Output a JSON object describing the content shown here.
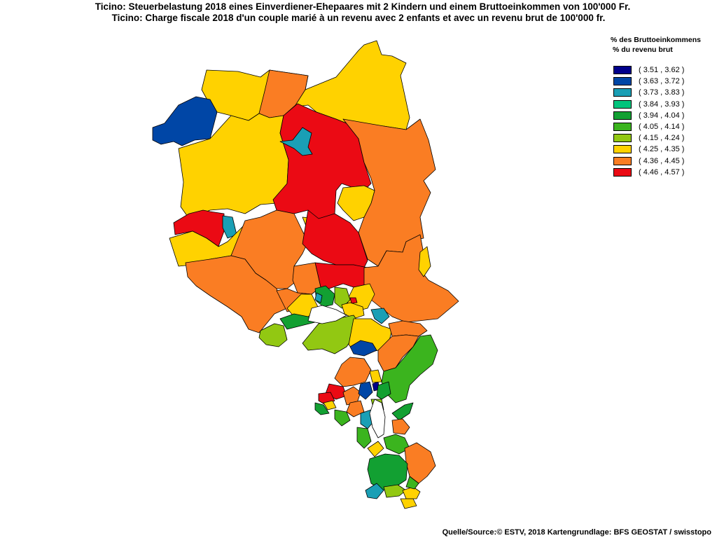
{
  "title": {
    "line1": "Ticino: Steuerbelastung 2018 eines Einverdiener-Ehepaares mit 2 Kindern und einem Bruttoeinkommen von 100'000 Fr.",
    "line2": "Ticino: Charge fiscale 2018 d'un couple marié à un revenu avec 2 enfants et avec un revenu brut de 100'000 fr."
  },
  "legend": {
    "title_de": "% des Bruttoeinkommens",
    "title_fr": "% du revenu brut",
    "classes": [
      {
        "label": "( 3.51 , 3.62 )",
        "color": "#00008b"
      },
      {
        "label": "( 3.63 , 3.72 )",
        "color": "#0046a6"
      },
      {
        "label": "( 3.73 , 3.83 )",
        "color": "#1a9fb5"
      },
      {
        "label": "( 3.84 , 3.93 )",
        "color": "#00c47c"
      },
      {
        "label": "( 3.94 , 4.04 )",
        "color": "#12a032"
      },
      {
        "label": "( 4.05 , 4.14 )",
        "color": "#3bb41e"
      },
      {
        "label": "( 4.15 , 4.24 )",
        "color": "#92c812"
      },
      {
        "label": "( 4.25 , 4.35 )",
        "color": "#ffd200"
      },
      {
        "label": "( 4.36 , 4.45 )",
        "color": "#fa7d23"
      },
      {
        "label": "( 4.46 , 4.57 )",
        "color": "#eb0a14"
      }
    ]
  },
  "source": "Quelle/Source:© ESTV, 2018 Kartengrundlage: BFS GEOSTAT / swisstopo"
}
